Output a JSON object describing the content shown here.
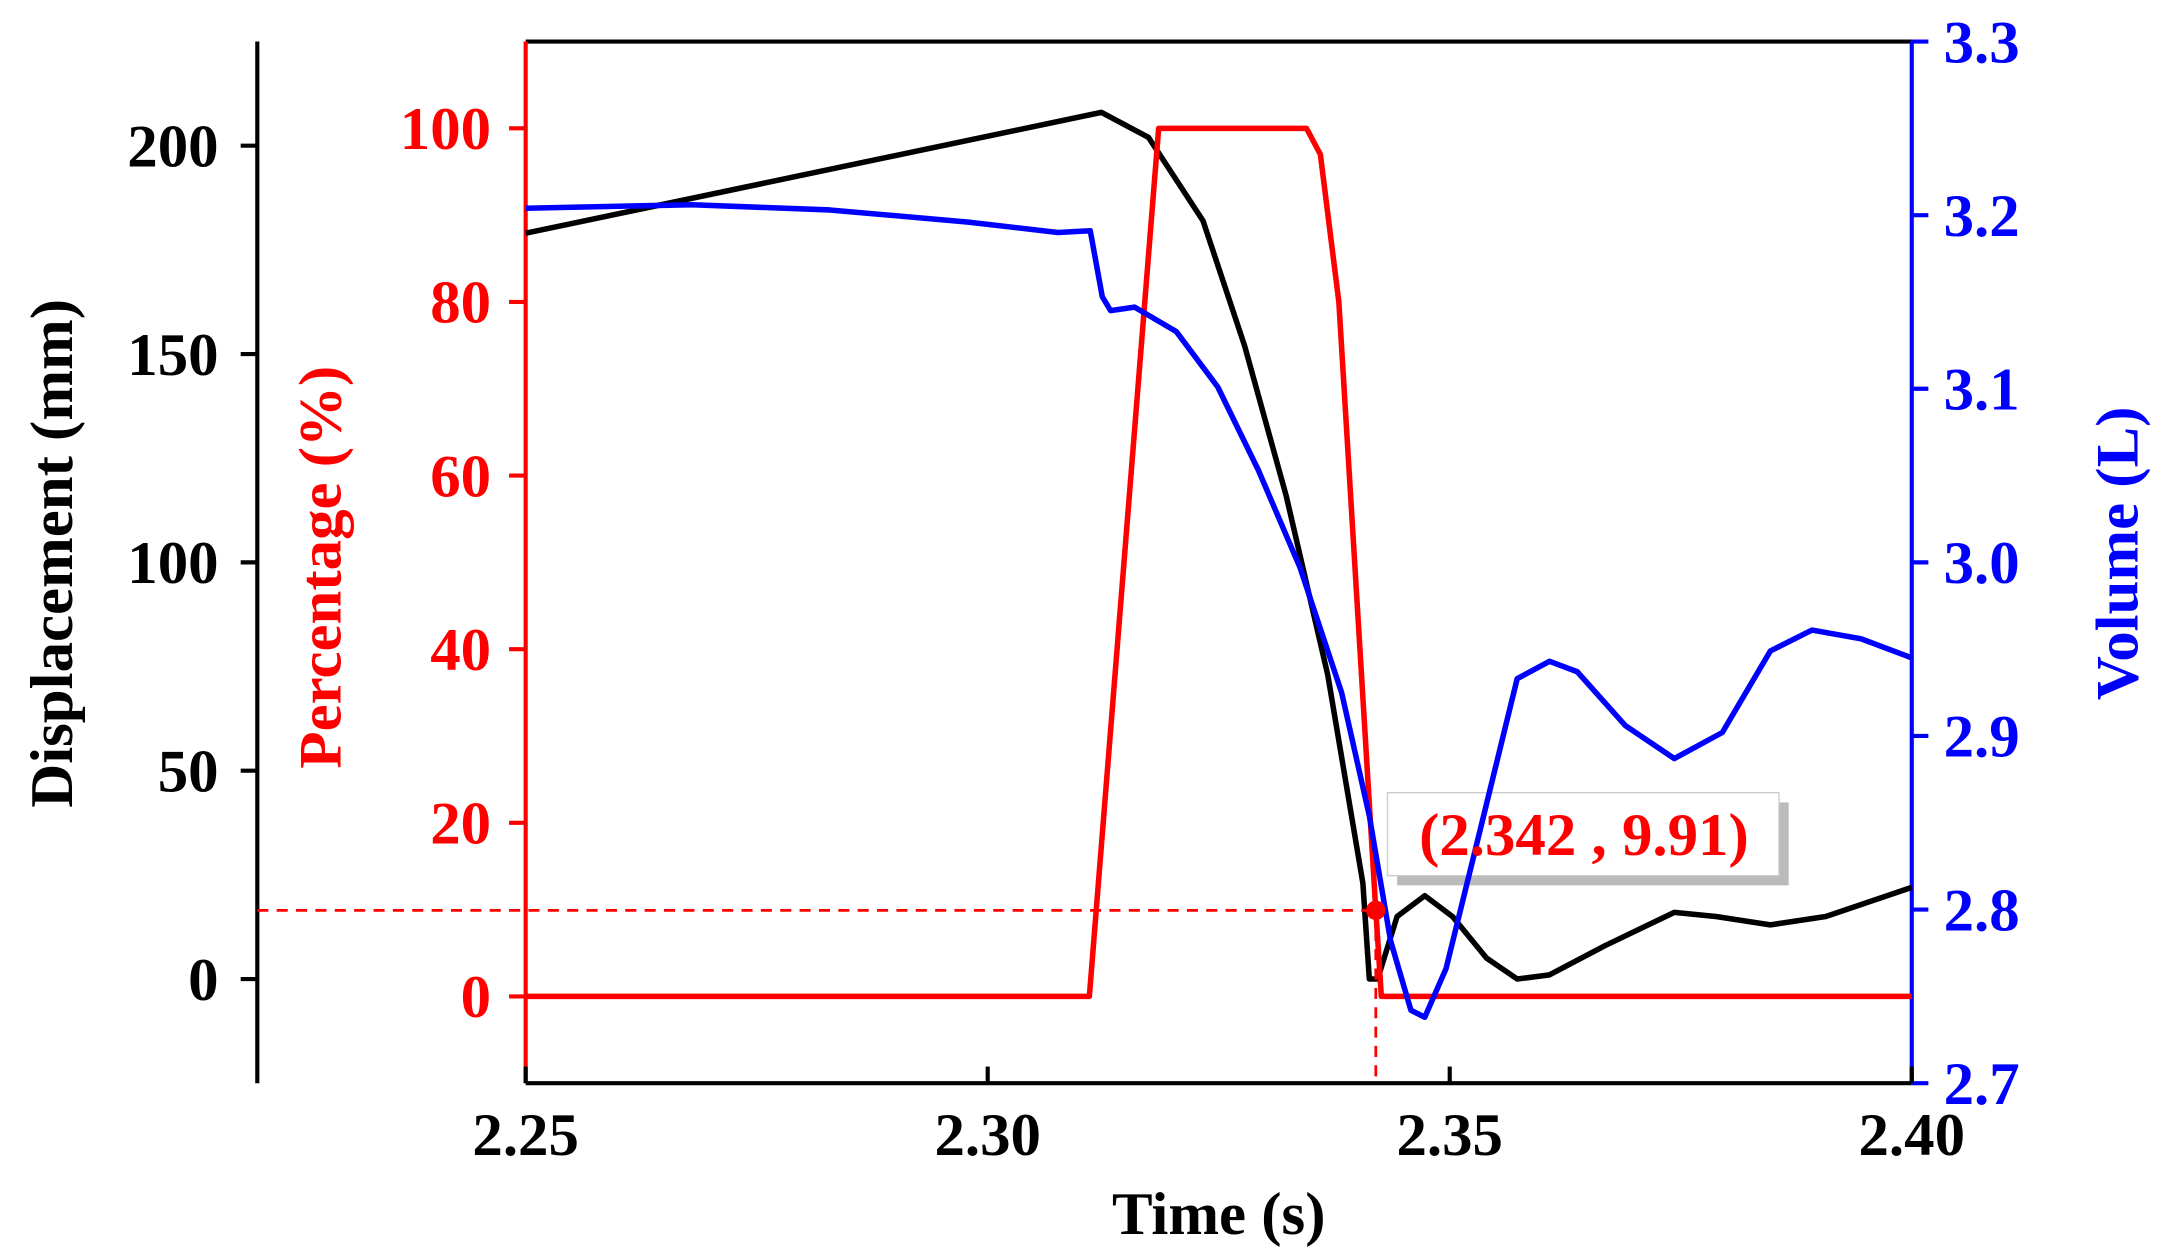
{
  "chart_data": {
    "type": "line",
    "xlabel": "Time (s)",
    "ylabel": "Displacement (mm)",
    "y2label": "Percentage (%)",
    "y3label": "Volume (L)",
    "xlim": [
      2.25,
      2.4
    ],
    "xticks": [
      2.25,
      {
        "value": 2.3,
        "label": "2.30"
      },
      2.35,
      {
        "value": 2.4,
        "label": "2.40"
      }
    ],
    "ylim": [
      -25,
      225
    ],
    "yticks": [
      0,
      50,
      100,
      150,
      200
    ],
    "y2lim": [
      -10,
      110
    ],
    "y2ticks": [
      0,
      20,
      40,
      60,
      80,
      100
    ],
    "y3lim": [
      2.7,
      3.3
    ],
    "y3ticks": [
      2.7,
      2.8,
      2.9,
      {
        "value": 3.0,
        "label": "3.0"
      },
      3.1,
      3.2,
      3.3
    ],
    "series": [
      {
        "name": "Displacement",
        "color": "#000000",
        "axis": "y",
        "x": [
          2.25,
          2.3123,
          2.3174,
          2.3233,
          2.3278,
          2.3323,
          2.3368,
          2.3406,
          2.3413,
          2.3422,
          2.3443,
          2.3473,
          2.3503,
          2.354,
          2.3573,
          2.3608,
          2.3668,
          2.3743,
          2.3788,
          2.3847,
          2.3907,
          2.4
        ],
        "values": [
          179,
          208,
          202,
          182,
          152,
          116,
          73,
          23,
          0,
          0,
          15,
          20,
          15,
          5,
          0,
          1,
          8,
          16,
          15,
          13,
          15,
          22
        ]
      },
      {
        "name": "Percentage",
        "color": "#ff0000",
        "axis": "y2",
        "x": [
          2.25,
          2.311,
          2.3185,
          2.3345,
          2.336,
          2.338,
          2.342,
          2.3426,
          2.4
        ],
        "values": [
          0,
          0,
          100,
          100,
          97,
          80,
          9.91,
          0,
          0
        ]
      },
      {
        "name": "Volume",
        "color": "#0000ff",
        "axis": "y3",
        "x": [
          2.25,
          2.268,
          2.2829,
          2.2979,
          2.3076,
          2.3111,
          2.3124,
          2.3133,
          2.3159,
          2.3204,
          2.3249,
          2.3293,
          2.3338,
          2.3383,
          2.3413,
          2.3436,
          2.3458,
          2.3473,
          2.3496,
          2.3533,
          2.3573,
          2.3608,
          2.3638,
          2.369,
          2.3743,
          2.3795,
          2.3847,
          2.3892,
          2.3945,
          2.4
        ],
        "values": [
          3.204,
          3.206,
          3.203,
          3.196,
          3.19,
          3.191,
          3.153,
          3.145,
          3.147,
          3.133,
          3.101,
          3.053,
          2.997,
          2.925,
          2.854,
          2.782,
          2.742,
          2.738,
          2.766,
          2.846,
          2.933,
          2.943,
          2.937,
          2.906,
          2.887,
          2.902,
          2.949,
          2.961,
          2.956,
          2.945
        ]
      }
    ],
    "annotations": [
      {
        "text": "(2.342 , 9.91)",
        "x": 2.342,
        "y": 9.91,
        "axis": "y2",
        "color": "#ff0000"
      }
    ]
  }
}
